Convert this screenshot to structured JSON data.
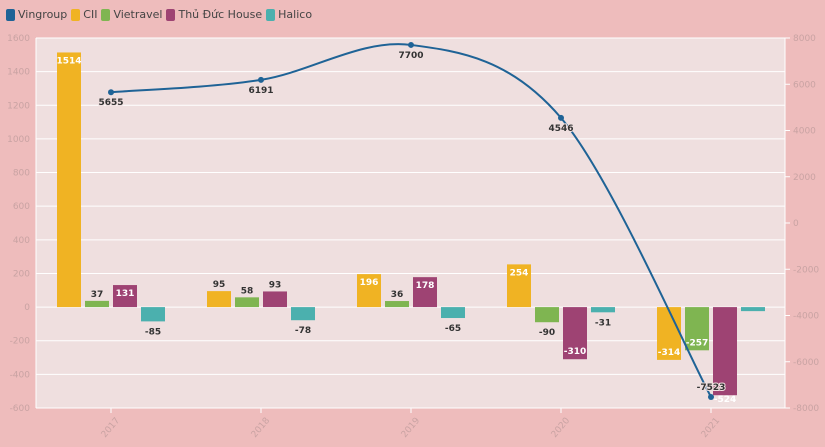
{
  "chart_data": {
    "type": "bar+line",
    "categories": [
      "2017",
      "2018",
      "2019",
      "2020",
      "2021"
    ],
    "series": [
      {
        "name": "Vingroup",
        "type": "line",
        "axis": "right",
        "color": "#1f6396",
        "values": [
          5655,
          6191,
          7700,
          4546,
          -7523
        ]
      },
      {
        "name": "CII",
        "type": "bar",
        "axis": "left",
        "color": "#f0b323",
        "values": [
          1514,
          95,
          196,
          254,
          -314
        ]
      },
      {
        "name": "Vietravel",
        "type": "bar",
        "axis": "left",
        "color": "#7fb551",
        "values": [
          37,
          58,
          36,
          -90,
          -257
        ]
      },
      {
        "name": "Thủ Đức House",
        "type": "bar",
        "axis": "left",
        "color": "#9e4373",
        "values": [
          131,
          93,
          178,
          -310,
          -524
        ]
      },
      {
        "name": "Halico",
        "type": "bar",
        "axis": "left",
        "color": "#4bb0ae",
        "values": [
          -85,
          -78,
          -65,
          -31,
          -24
        ]
      }
    ],
    "hidden_labels": [
      [
        3,
        4
      ]
    ],
    "left_axis": {
      "range": [
        -600,
        1600
      ],
      "ticks": [
        -600,
        -400,
        -200,
        0,
        200,
        400,
        600,
        800,
        1000,
        1200,
        1400,
        1600
      ]
    },
    "right_axis": {
      "range": [
        -8000,
        8000
      ],
      "ticks": [
        -8000,
        -6000,
        -4000,
        -2000,
        0,
        2000,
        4000,
        6000,
        8000
      ]
    },
    "grid": true,
    "legend_position": "top-left"
  }
}
